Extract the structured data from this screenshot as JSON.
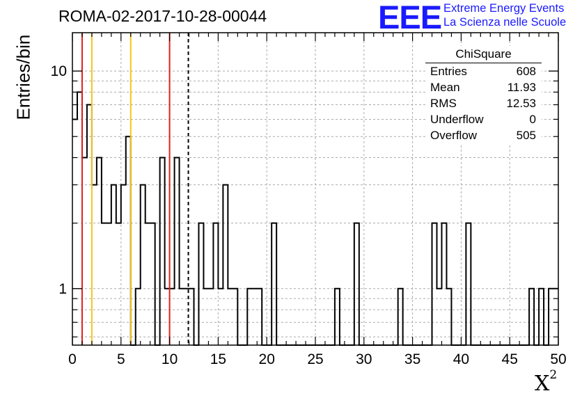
{
  "title": "ROMA-02-2017-10-28-00044",
  "logo": {
    "mark": "EEE",
    "line1": "Extreme Energy Events",
    "line2": "La Scienza nelle Scuole"
  },
  "axes": {
    "ylabel": "Entries/bin",
    "xlabel": "X",
    "xlabel_sup": "2"
  },
  "stats_box": {
    "title": "ChiSquare",
    "rows": [
      {
        "label": "Entries",
        "value": "608"
      },
      {
        "label": "Mean",
        "value": "11.93"
      },
      {
        "label": "RMS",
        "value": "12.53"
      },
      {
        "label": "Underflow",
        "value": "0"
      },
      {
        "label": "Overflow",
        "value": "505"
      }
    ]
  },
  "colors": {
    "red_line": "#e0201e",
    "yellow_line": "#f5c518",
    "hist": "#000000",
    "grid": "#aaaaaa"
  },
  "chart_data": {
    "type": "bar",
    "style": "step-histogram",
    "bin_width": 0.5,
    "xlim": [
      0,
      50
    ],
    "ylim": [
      0.55,
      15
    ],
    "yscale": "log",
    "grid": true,
    "x_ticks": [
      0,
      5,
      10,
      15,
      20,
      25,
      30,
      35,
      40,
      45,
      50
    ],
    "y_tick_labels": [
      {
        "value": 1,
        "label": "1"
      },
      {
        "value": 10,
        "label": "10"
      }
    ],
    "bin_low_edges": [
      0,
      0.5,
      1,
      1.5,
      2,
      2.5,
      3,
      3.5,
      4,
      4.5,
      5,
      5.5,
      6,
      6.5,
      7,
      7.5,
      8,
      8.5,
      9,
      9.5,
      10,
      10.5,
      11,
      11.5,
      12,
      12.5,
      13,
      13.5,
      14,
      14.5,
      15,
      15.5,
      16,
      16.5,
      17,
      17.5,
      18,
      18.5,
      19,
      19.5,
      20,
      20.5,
      21,
      21.5,
      22,
      22.5,
      23,
      23.5,
      24,
      24.5,
      25,
      25.5,
      26,
      26.5,
      27,
      27.5,
      28,
      28.5,
      29,
      29.5,
      30,
      30.5,
      31,
      31.5,
      32,
      32.5,
      33,
      33.5,
      34,
      34.5,
      35,
      35.5,
      36,
      36.5,
      37,
      37.5,
      38,
      38.5,
      39,
      39.5,
      40,
      40.5,
      41,
      41.5,
      42,
      42.5,
      43,
      43.5,
      44,
      44.5,
      45,
      45.5,
      46,
      46.5,
      47,
      47.5,
      48,
      48.5,
      49,
      49.5
    ],
    "values": [
      6,
      8,
      4,
      7,
      3,
      4,
      2,
      2,
      3,
      2,
      3,
      5,
      0,
      1,
      3,
      2,
      2,
      0,
      4,
      1,
      1,
      4,
      1,
      1,
      1,
      0,
      2,
      1,
      1,
      2,
      1,
      3,
      1,
      1,
      0,
      0,
      1,
      1,
      1,
      0,
      0,
      2,
      0,
      0,
      0,
      0,
      0,
      0,
      0,
      0,
      0,
      0,
      0,
      0,
      1,
      0,
      0,
      0,
      2,
      0,
      0,
      0,
      0,
      0,
      0,
      0,
      0,
      1,
      0,
      0,
      0,
      0,
      0,
      0,
      2,
      1,
      2,
      1,
      0,
      0,
      0,
      2,
      0,
      0,
      0,
      0,
      0,
      0,
      0,
      0,
      0,
      0,
      0,
      0,
      1,
      0,
      1,
      0,
      1,
      1
    ],
    "vertical_lines": [
      {
        "x": 1,
        "color": "red",
        "style": "solid"
      },
      {
        "x": 2,
        "color": "yellow",
        "style": "solid"
      },
      {
        "x": 6,
        "color": "yellow",
        "style": "solid"
      },
      {
        "x": 10,
        "color": "red",
        "style": "solid"
      },
      {
        "x": 11.93,
        "color": "black",
        "style": "dashed"
      }
    ]
  }
}
